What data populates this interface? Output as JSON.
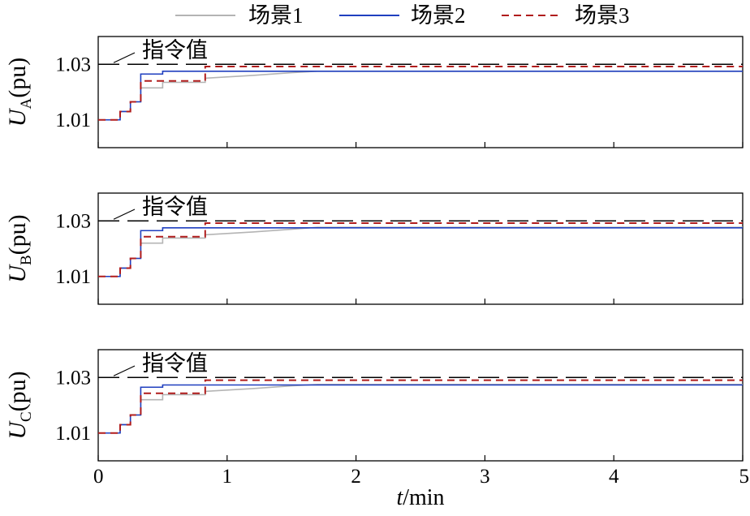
{
  "chart_data": {
    "type": "line",
    "legend_position": "top",
    "legend": [
      {
        "key": "s1",
        "name": "场景1",
        "color": "#b4b4b4",
        "dash": "solid"
      },
      {
        "key": "s2",
        "name": "场景2",
        "color": "#1f3fbf",
        "dash": "solid"
      },
      {
        "key": "s3",
        "name": "场景3",
        "color": "#b01c1c",
        "dash": "dashed"
      }
    ],
    "x": {
      "label_italic": "t",
      "label_rest": "/min",
      "range": [
        0,
        5
      ],
      "ticks": [
        0,
        1,
        2,
        3,
        4,
        5
      ],
      "tick_labels": [
        "0",
        "1",
        "2",
        "3",
        "4",
        "5"
      ]
    },
    "reference": {
      "label": "指令值",
      "value": 1.03,
      "color": "#000000",
      "dash": "long-dash"
    },
    "panels": [
      {
        "id": "A",
        "ylabel_main": "U",
        "ylabel_sub": "A",
        "ylabel_unit": "(pu)",
        "y_range": [
          1.0,
          1.04
        ],
        "y_ticks": [
          1.01,
          1.03
        ],
        "y_tick_labels": [
          "1.01",
          "1.03"
        ],
        "series": {
          "s1": [
            [
              0,
              1.01
            ],
            [
              0.17,
              1.01
            ],
            [
              0.17,
              1.013
            ],
            [
              0.25,
              1.013
            ],
            [
              0.25,
              1.0165
            ],
            [
              0.33,
              1.0165
            ],
            [
              0.33,
              1.0215
            ],
            [
              0.5,
              1.0215
            ],
            [
              0.5,
              1.0235
            ],
            [
              0.83,
              1.0235
            ],
            [
              0.83,
              1.025
            ],
            [
              1.2,
              1.026
            ],
            [
              1.5,
              1.027
            ],
            [
              1.7,
              1.0275
            ],
            [
              5,
              1.0275
            ]
          ],
          "s2": [
            [
              0,
              1.01
            ],
            [
              0.17,
              1.01
            ],
            [
              0.17,
              1.013
            ],
            [
              0.25,
              1.013
            ],
            [
              0.25,
              1.0165
            ],
            [
              0.33,
              1.0165
            ],
            [
              0.33,
              1.0265
            ],
            [
              0.5,
              1.0265
            ],
            [
              0.5,
              1.0275
            ],
            [
              5,
              1.0275
            ]
          ],
          "s3": [
            [
              0,
              1.01
            ],
            [
              0.17,
              1.01
            ],
            [
              0.17,
              1.013
            ],
            [
              0.25,
              1.013
            ],
            [
              0.25,
              1.0165
            ],
            [
              0.33,
              1.0165
            ],
            [
              0.33,
              1.024
            ],
            [
              0.83,
              1.024
            ],
            [
              0.83,
              1.0292
            ],
            [
              5,
              1.0292
            ]
          ]
        }
      },
      {
        "id": "B",
        "ylabel_main": "U",
        "ylabel_sub": "B",
        "ylabel_unit": "(pu)",
        "y_range": [
          1.0,
          1.04
        ],
        "y_ticks": [
          1.01,
          1.03
        ],
        "y_tick_labels": [
          "1.01",
          "1.03"
        ],
        "series": {
          "s1": [
            [
              0,
              1.01
            ],
            [
              0.17,
              1.01
            ],
            [
              0.17,
              1.013
            ],
            [
              0.25,
              1.013
            ],
            [
              0.25,
              1.0165
            ],
            [
              0.33,
              1.0165
            ],
            [
              0.33,
              1.022
            ],
            [
              0.5,
              1.022
            ],
            [
              0.5,
              1.0238
            ],
            [
              0.83,
              1.0238
            ],
            [
              0.83,
              1.025
            ],
            [
              1.2,
              1.026
            ],
            [
              1.5,
              1.027
            ],
            [
              1.7,
              1.0277
            ],
            [
              5,
              1.0277
            ]
          ],
          "s2": [
            [
              0,
              1.01
            ],
            [
              0.17,
              1.01
            ],
            [
              0.17,
              1.013
            ],
            [
              0.25,
              1.013
            ],
            [
              0.25,
              1.0165
            ],
            [
              0.33,
              1.0165
            ],
            [
              0.33,
              1.0265
            ],
            [
              0.5,
              1.0265
            ],
            [
              0.5,
              1.0275
            ],
            [
              5,
              1.0275
            ]
          ],
          "s3": [
            [
              0,
              1.01
            ],
            [
              0.17,
              1.01
            ],
            [
              0.17,
              1.013
            ],
            [
              0.25,
              1.013
            ],
            [
              0.25,
              1.0165
            ],
            [
              0.33,
              1.0165
            ],
            [
              0.33,
              1.0243
            ],
            [
              0.83,
              1.0243
            ],
            [
              0.83,
              1.0292
            ],
            [
              5,
              1.0292
            ]
          ]
        }
      },
      {
        "id": "C",
        "ylabel_main": "U",
        "ylabel_sub": "C",
        "ylabel_unit": "(pu)",
        "y_range": [
          1.0,
          1.04
        ],
        "y_ticks": [
          1.01,
          1.03
        ],
        "y_tick_labels": [
          "1.01",
          "1.03"
        ],
        "series": {
          "s1": [
            [
              0,
              1.01
            ],
            [
              0.17,
              1.01
            ],
            [
              0.17,
              1.013
            ],
            [
              0.25,
              1.013
            ],
            [
              0.25,
              1.0165
            ],
            [
              0.33,
              1.0165
            ],
            [
              0.33,
              1.022
            ],
            [
              0.5,
              1.022
            ],
            [
              0.5,
              1.0238
            ],
            [
              0.83,
              1.0238
            ],
            [
              0.83,
              1.025
            ],
            [
              1.2,
              1.026
            ],
            [
              1.5,
              1.027
            ],
            [
              1.7,
              1.0275
            ],
            [
              5,
              1.0275
            ]
          ],
          "s2": [
            [
              0,
              1.01
            ],
            [
              0.17,
              1.01
            ],
            [
              0.17,
              1.013
            ],
            [
              0.25,
              1.013
            ],
            [
              0.25,
              1.0165
            ],
            [
              0.33,
              1.0165
            ],
            [
              0.33,
              1.0265
            ],
            [
              0.5,
              1.0265
            ],
            [
              0.5,
              1.0273
            ],
            [
              5,
              1.0273
            ]
          ],
          "s3": [
            [
              0,
              1.01
            ],
            [
              0.17,
              1.01
            ],
            [
              0.17,
              1.013
            ],
            [
              0.25,
              1.013
            ],
            [
              0.25,
              1.0165
            ],
            [
              0.33,
              1.0165
            ],
            [
              0.33,
              1.0243
            ],
            [
              0.83,
              1.0243
            ],
            [
              0.83,
              1.029
            ],
            [
              5,
              1.029
            ]
          ]
        }
      }
    ]
  }
}
